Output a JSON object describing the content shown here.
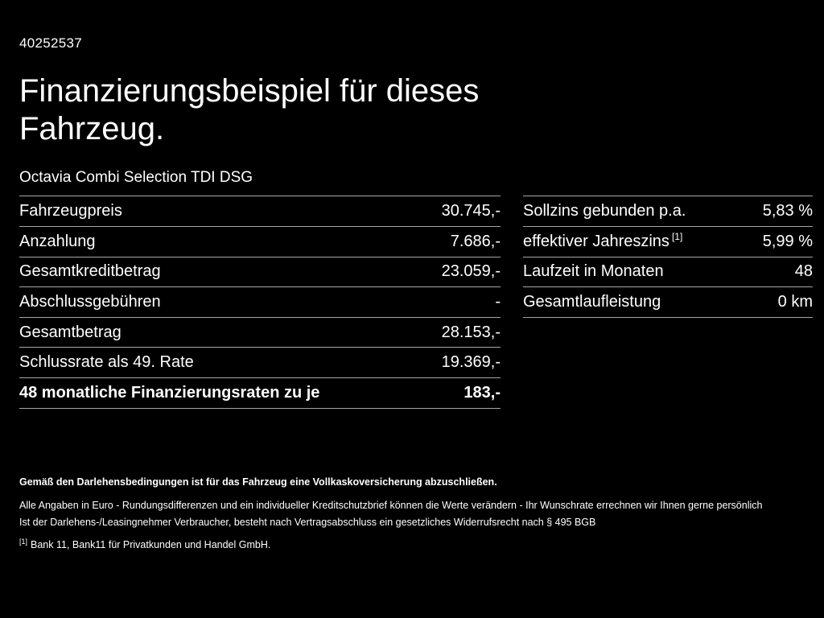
{
  "page": {
    "id_number": "40252537",
    "title_line1": "Finanzierungsbeispiel für dieses",
    "title_line2": "Fahrzeug.",
    "subtitle": "Octavia Combi Selection TDI DSG"
  },
  "left_table": {
    "rows": [
      {
        "label": "Fahrzeugpreis",
        "value": "30.745,-"
      },
      {
        "label": "Anzahlung",
        "value": "7.686,-"
      },
      {
        "label": "Gesamtkreditbetrag",
        "value": "23.059,-"
      },
      {
        "label": "Abschlussgebühren",
        "value": "-"
      },
      {
        "label": "Gesamtbetrag",
        "value": "28.153,-"
      },
      {
        "label": "Schlussrate als 49. Rate",
        "value": "19.369,-"
      },
      {
        "label": "48 monatliche Finanzierungsraten zu je",
        "value": "183,-"
      }
    ]
  },
  "right_table": {
    "rows": [
      {
        "label": "Sollzins gebunden p.a.",
        "value": "5,83 %"
      },
      {
        "label": "effektiver Jahreszins",
        "sup": "[1]",
        "value": "5,99 %"
      },
      {
        "label": "Laufzeit in Monaten",
        "value": "48"
      },
      {
        "label": "Gesamtlaufleistung",
        "value": "0 km"
      }
    ]
  },
  "footer": {
    "bold_line": "Gemäß den Darlehensbedingungen ist für das Fahrzeug eine Vollkaskoversicherung abzuschließen.",
    "line2": "Alle Angaben in Euro - Rundungsdifferenzen und ein individueller Kreditschutzbrief können die Werte verändern - Ihr Wunschrate errechnen wir Ihnen gerne persönlich",
    "line3": "Ist der Darlehens-/Leasingnehmer Verbraucher, besteht nach Vertragsabschluss ein gesetzliches Widerrufsrecht nach § 495 BGB",
    "footnote_marker": "[1]",
    "footnote_text": "Bank 11, Bank11 für Privatkunden und Handel GmbH."
  },
  "colors": {
    "background": "#000000",
    "text": "#ffffff",
    "divider": "#a6a6a6"
  }
}
